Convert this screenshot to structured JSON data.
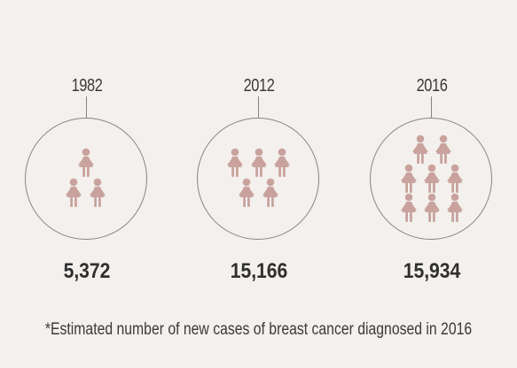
{
  "colors": {
    "background": "#f3f0ed",
    "figure": "#c9a29d",
    "line": "#8a8481"
  },
  "icon": "woman-icon",
  "groups": [
    {
      "year": "1982",
      "count": "5,372"
    },
    {
      "year": "2012",
      "count": "15,166"
    },
    {
      "year": "2016",
      "count": "15,934"
    }
  ],
  "footnote": "*Estimated number of new cases of breast cancer diagnosed in 2016"
}
